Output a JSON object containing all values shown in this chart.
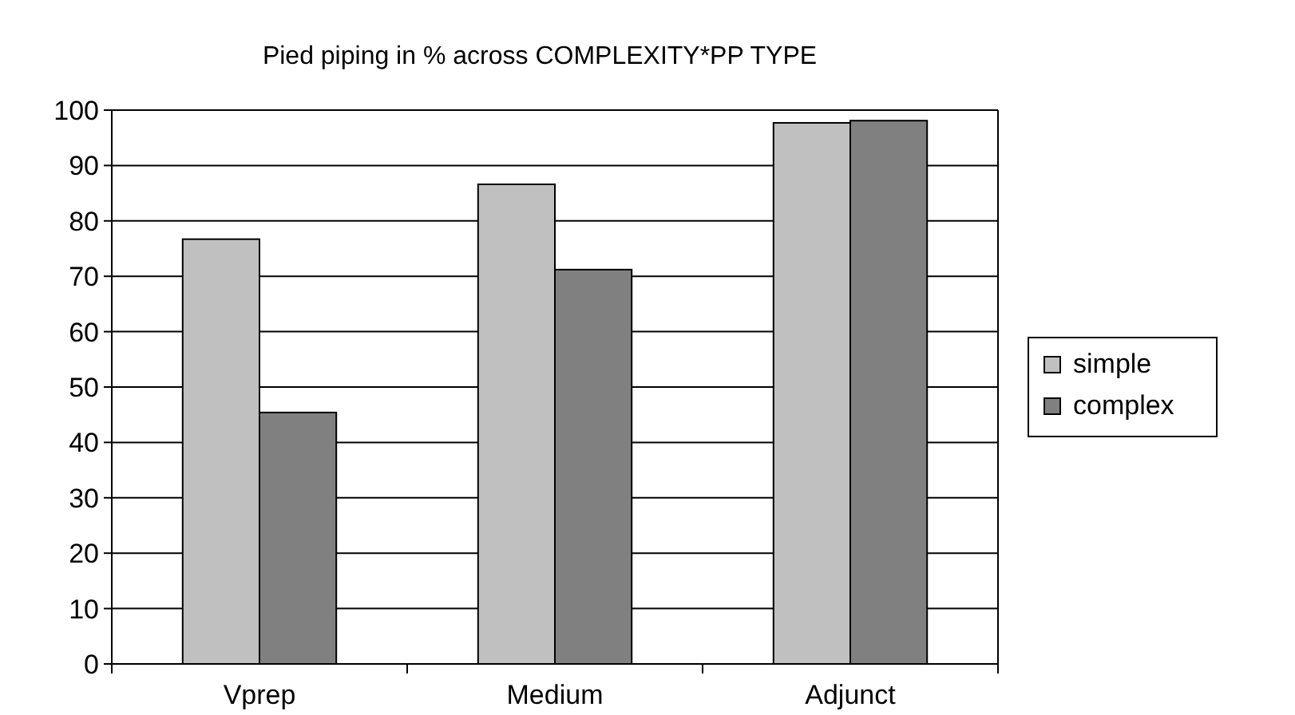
{
  "chart_data": {
    "type": "bar",
    "title": "Pied piping in % across COMPLEXITY*PP TYPE",
    "categories": [
      "Vprep",
      "Medium",
      "Adjunct"
    ],
    "series": [
      {
        "name": "simple",
        "color": "#c0c0c0",
        "values": [
          76.7,
          86.6,
          97.7
        ]
      },
      {
        "name": "complex",
        "color": "#808080",
        "values": [
          45.4,
          71.2,
          98.1
        ]
      }
    ],
    "ylim": [
      0,
      100
    ],
    "yticks": [
      0,
      10,
      20,
      30,
      40,
      50,
      60,
      70,
      80,
      90,
      100
    ],
    "grid": "y",
    "legend": "right"
  }
}
